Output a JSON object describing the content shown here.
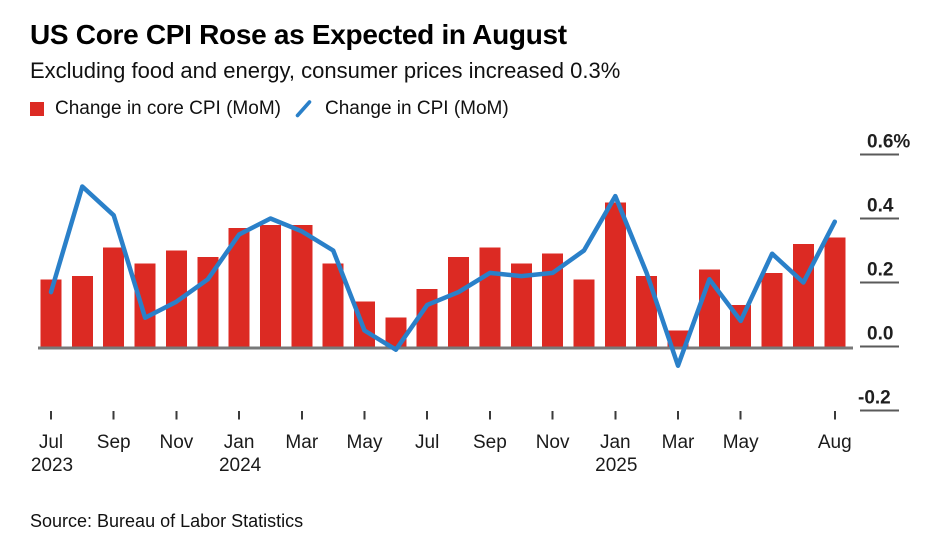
{
  "header": {
    "title": "US Core CPI Rose as Expected in August",
    "subtitle": "Excluding food and energy, consumer prices increased 0.3%"
  },
  "legend": {
    "bar_label": "Change in core CPI (MoM)",
    "line_label": "Change in CPI (MoM)"
  },
  "source": "Source: Bureau of Labor Statistics",
  "colors": {
    "bar": "#dc2a23",
    "line": "#2a80c9",
    "baseline": "#787878",
    "grid_dash": "#5a5a5a",
    "axis_tick": "#3a3a3a",
    "text": "#1a1a1a"
  },
  "chart_data": {
    "type": "bar+line",
    "unit": "%",
    "title": "US Core CPI Rose as Expected in August",
    "x": [
      "Jul 2023",
      "Aug 2023",
      "Sep 2023",
      "Oct 2023",
      "Nov 2023",
      "Dec 2023",
      "Jan 2024",
      "Feb 2024",
      "Mar 2024",
      "Apr 2024",
      "May 2024",
      "Jun 2024",
      "Jul 2024",
      "Aug 2024",
      "Sep 2024",
      "Oct 2024",
      "Nov 2024",
      "Dec 2024",
      "Jan 2025",
      "Feb 2025",
      "Mar 2025",
      "Apr 2025",
      "May 2025",
      "Jun 2025",
      "Jul 2025",
      "Aug 2025"
    ],
    "series": [
      {
        "name": "Change in core CPI (MoM)",
        "type": "bar",
        "color": "#dc2a23",
        "values": [
          0.21,
          0.22,
          0.31,
          0.26,
          0.3,
          0.28,
          0.37,
          0.38,
          0.38,
          0.26,
          0.14,
          0.09,
          0.18,
          0.28,
          0.31,
          0.26,
          0.29,
          0.21,
          0.45,
          0.22,
          0.05,
          0.24,
          0.13,
          0.23,
          0.32,
          0.34
        ]
      },
      {
        "name": "Change in CPI (MoM)",
        "type": "line",
        "color": "#2a80c9",
        "values": [
          0.17,
          0.5,
          0.41,
          0.09,
          0.14,
          0.21,
          0.35,
          0.4,
          0.36,
          0.3,
          0.05,
          -0.01,
          0.13,
          0.17,
          0.23,
          0.22,
          0.23,
          0.3,
          0.47,
          0.23,
          -0.06,
          0.21,
          0.08,
          0.29,
          0.2,
          0.39
        ]
      }
    ],
    "ylim": [
      -0.2,
      0.6
    ],
    "yticks": [
      {
        "label": "0.6%",
        "value": 0.6
      },
      {
        "label": "0.4",
        "value": 0.4
      },
      {
        "label": "0.2",
        "value": 0.2
      },
      {
        "label": "0.0",
        "value": 0.0
      },
      {
        "label": "-0.2",
        "value": -0.2
      }
    ],
    "xticks": [
      {
        "label": "Jul",
        "year": "2023",
        "index": 0
      },
      {
        "label": "Sep",
        "year": "",
        "index": 2
      },
      {
        "label": "Nov",
        "year": "",
        "index": 4
      },
      {
        "label": "Jan",
        "year": "2024",
        "index": 6
      },
      {
        "label": "Mar",
        "year": "",
        "index": 8
      },
      {
        "label": "May",
        "year": "",
        "index": 10
      },
      {
        "label": "Jul",
        "year": "",
        "index": 12
      },
      {
        "label": "Sep",
        "year": "",
        "index": 14
      },
      {
        "label": "Nov",
        "year": "",
        "index": 16
      },
      {
        "label": "Jan",
        "year": "2025",
        "index": 18
      },
      {
        "label": "Mar",
        "year": "",
        "index": 20
      },
      {
        "label": "May",
        "year": "",
        "index": 22
      },
      {
        "label": "Aug",
        "year": "",
        "index": 25
      }
    ],
    "grid": "right-axis-dashes",
    "legend_position": "top-left"
  }
}
